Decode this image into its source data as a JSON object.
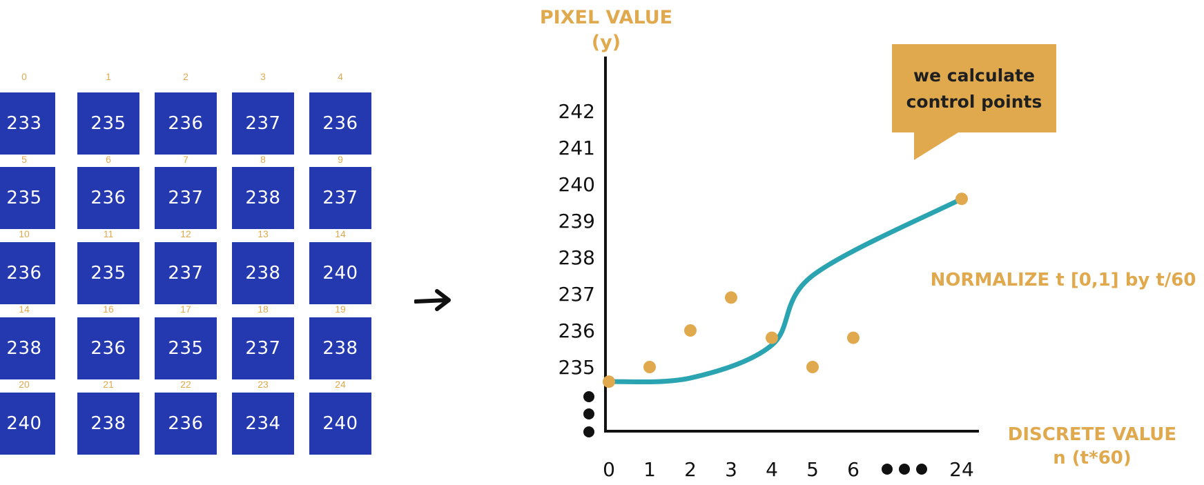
{
  "grid": {
    "rows": [
      {
        "indices": [
          "0",
          "1",
          "2",
          "3",
          "4"
        ],
        "values": [
          "233",
          "235",
          "236",
          "237",
          "236"
        ]
      },
      {
        "indices": [
          "5",
          "6",
          "7",
          "8",
          "9"
        ],
        "values": [
          "235",
          "236",
          "237",
          "238",
          "237"
        ]
      },
      {
        "indices": [
          "10",
          "11",
          "12",
          "13",
          "14"
        ],
        "values": [
          "236",
          "235",
          "237",
          "238",
          "240"
        ]
      },
      {
        "indices": [
          "14",
          "16",
          "17",
          "18",
          "19"
        ],
        "values": [
          "238",
          "236",
          "235",
          "237",
          "238"
        ]
      },
      {
        "indices": [
          "20",
          "21",
          "22",
          "23",
          "24"
        ],
        "values": [
          "240",
          "238",
          "236",
          "234",
          "240"
        ]
      }
    ],
    "cell_color": "#2438B0",
    "index_color": "#E0A94E"
  },
  "chart_data": {
    "type": "scatter",
    "ylabel_line1": "PIXEL VALUE",
    "ylabel_line2": "(y)",
    "xlabel_line1": "DISCRETE VALUE",
    "xlabel_line2": "n (t*60)",
    "x_ticks": [
      "0",
      "1",
      "2",
      "3",
      "4",
      "5",
      "6",
      "24"
    ],
    "y_ticks": [
      "235",
      "236",
      "237",
      "238",
      "239",
      "240",
      "241",
      "242"
    ],
    "ylim": [
      233,
      242
    ],
    "points": [
      {
        "x": 0,
        "y": 234.6
      },
      {
        "x": 1,
        "y": 235
      },
      {
        "x": 2,
        "y": 236
      },
      {
        "x": 3,
        "y": 236.9
      },
      {
        "x": 4,
        "y": 235.8
      },
      {
        "x": 5,
        "y": 235
      },
      {
        "x": 6,
        "y": 235.8
      },
      {
        "x": 24,
        "y": 239.6
      }
    ],
    "curve": [
      {
        "x": 0,
        "y": 234.6
      },
      {
        "x": 2,
        "y": 234.7
      },
      {
        "x": 4,
        "y": 235.6
      },
      {
        "x": 5,
        "y": 237.5
      },
      {
        "x": 24,
        "y": 239.6
      }
    ],
    "annotation": "NORMALIZE t [0,1] by t/60",
    "point_color": "#E0A94E",
    "curve_color": "#2BA4B1",
    "axis_color": "#111111"
  },
  "callout": {
    "line1": "we calculate",
    "line2": "control points",
    "color": "#E0A94E"
  }
}
